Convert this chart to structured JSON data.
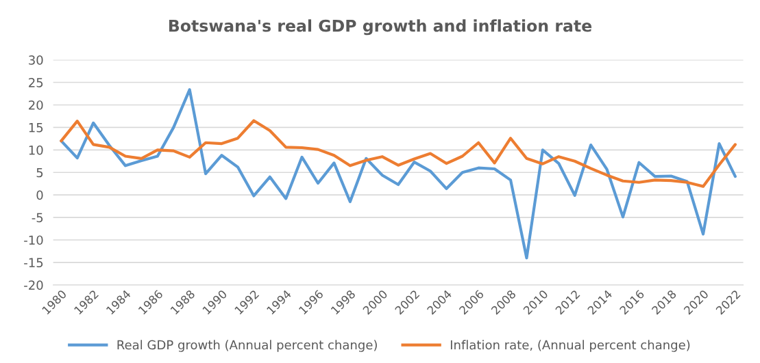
{
  "chart_data": {
    "type": "line",
    "title": "Botswana's real GDP growth and inflation rate",
    "categories": [
      "1980",
      null,
      "1982",
      null,
      "1984",
      null,
      "1986",
      null,
      "1988",
      null,
      "1990",
      null,
      "1992",
      null,
      "1994",
      null,
      "1996",
      null,
      "1998",
      null,
      "2000",
      null,
      "2002",
      null,
      "2004",
      null,
      "2006",
      null,
      "2008",
      null,
      "2010",
      null,
      "2012",
      null,
      "2014",
      null,
      "2016",
      null,
      "2018",
      null,
      "2020",
      null,
      "2022"
    ],
    "series": [
      {
        "name": "Real GDP growth (Annual percent change)",
        "color": "#5b9bd5",
        "values": [
          12,
          8.2,
          16,
          11,
          6.5,
          7.6,
          8.6,
          15,
          23.4,
          4.7,
          8.8,
          6.2,
          -0.2,
          4,
          -0.8,
          8.4,
          2.6,
          7.1,
          -1.5,
          8.1,
          4.4,
          2.3,
          7.3,
          5.3,
          1.4,
          5,
          6,
          5.8,
          3.3,
          -14,
          10,
          7,
          -0.1,
          11.1,
          5.7,
          -4.9,
          7.2,
          4.1,
          4.2,
          3,
          -8.7,
          11.4,
          4.1
        ]
      },
      {
        "name": "Inflation rate, (Annual percent change)",
        "color": "#ed7d31",
        "values": [
          12,
          16.4,
          11.2,
          10.6,
          8.6,
          8.1,
          10,
          9.8,
          8.4,
          11.6,
          11.4,
          12.6,
          16.5,
          14.3,
          10.6,
          10.5,
          10.1,
          8.8,
          6.5,
          7.7,
          8.5,
          6.6,
          8,
          9.2,
          7,
          8.6,
          11.6,
          7.1,
          12.6,
          8.1,
          6.9,
          8.5,
          7.5,
          5.9,
          4.4,
          3.1,
          2.8,
          3.3,
          3.2,
          2.8,
          1.9,
          6.7,
          11.2
        ]
      }
    ],
    "ylim": [
      -20,
      30
    ],
    "yticks": [
      -20,
      -15,
      -10,
      -5,
      0,
      5,
      10,
      15,
      20,
      25,
      30
    ],
    "grid": "y",
    "legend": "bottom",
    "marker": "none",
    "line_style": "solid"
  }
}
